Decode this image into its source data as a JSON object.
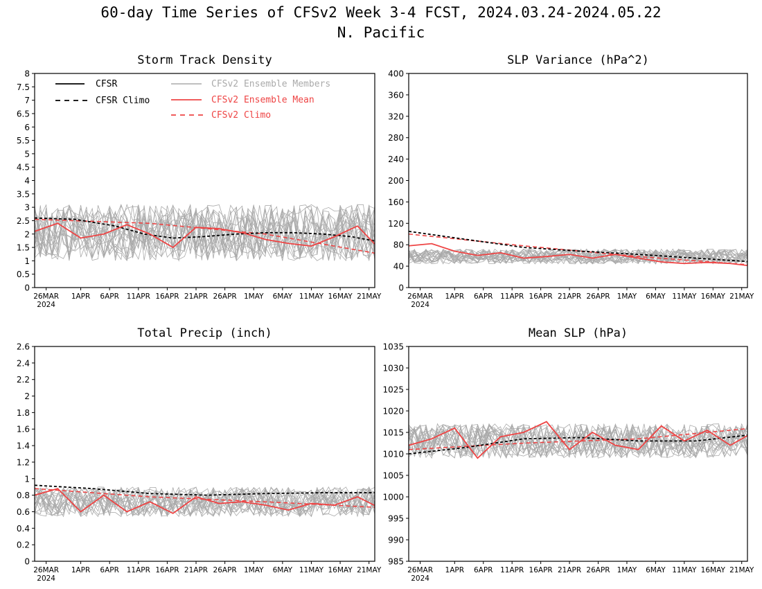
{
  "page": {
    "title_line1": "60-day Time Series of CFSv2 Week 3-4 FCST, 2024.03.24-2024.05.22",
    "title_line2": "N. Pacific"
  },
  "colors": {
    "cfsr": "#000000",
    "ensemble_member": "#aaaaaa",
    "ensemble_mean": "#ee4444",
    "cfsv2_climo": "#ee4444"
  },
  "x_axis": {
    "start_date": "2024-03-24",
    "days": 60,
    "tick_labels": [
      "26MAR",
      "1APR",
      "6APR",
      "11APR",
      "16APR",
      "21APR",
      "26APR",
      "1MAY",
      "6MAY",
      "11MAY",
      "16MAY",
      "21MAY"
    ],
    "tick_dates": [
      "2024-03-26",
      "2024-04-01",
      "2024-04-06",
      "2024-04-11",
      "2024-04-16",
      "2024-04-21",
      "2024-04-26",
      "2024-05-01",
      "2024-05-06",
      "2024-05-11",
      "2024-05-16",
      "2024-05-21"
    ],
    "year_label": "2024"
  },
  "legend": {
    "cfsr": "CFSR",
    "cfsr_climo": "CFSR Climo",
    "members": "CFSv2 Ensemble Members",
    "mean": "CFSv2 Ensemble Mean",
    "cfsv2_climo": "CFSv2 Climo"
  },
  "chart_data": [
    {
      "type": "line",
      "title": "Storm Track Density",
      "ylim": [
        0,
        8
      ],
      "yticks": [
        "0",
        "0.5",
        "1",
        "1.5",
        "2",
        "2.5",
        "3",
        "3.5",
        "4",
        "4.5",
        "5",
        "5.5",
        "6",
        "6.5",
        "7",
        "7.5",
        "8"
      ],
      "cfsr_climo": {
        "x": [
          "2024-03-24",
          "2024-03-31",
          "2024-04-07",
          "2024-04-12",
          "2024-04-17",
          "2024-04-22",
          "2024-04-28",
          "2024-05-03",
          "2024-05-08",
          "2024-05-13",
          "2024-05-18",
          "2024-05-23"
        ],
        "y": [
          2.6,
          2.55,
          2.3,
          2.0,
          1.85,
          1.9,
          2.0,
          2.05,
          2.05,
          2.0,
          1.9,
          1.7
        ]
      },
      "cfsv2_climo": {
        "x": [
          "2024-03-24",
          "2024-04-13",
          "2024-05-03",
          "2024-05-23"
        ],
        "y": [
          2.55,
          2.4,
          2.0,
          1.25
        ]
      },
      "ensemble_mean": {
        "x": [
          "2024-03-24",
          "2024-03-28",
          "2024-04-01",
          "2024-04-05",
          "2024-04-09",
          "2024-04-13",
          "2024-04-17",
          "2024-04-21",
          "2024-04-25",
          "2024-04-29",
          "2024-05-03",
          "2024-05-07",
          "2024-05-11",
          "2024-05-15",
          "2024-05-19",
          "2024-05-23"
        ],
        "y": [
          2.1,
          2.4,
          1.85,
          2.0,
          2.35,
          2.0,
          1.5,
          2.25,
          2.2,
          2.05,
          1.8,
          1.65,
          1.55,
          1.9,
          2.3,
          1.4
        ]
      },
      "members_band": {
        "center": 2.05,
        "amplitude": 1.05,
        "count": 20
      }
    },
    {
      "type": "line",
      "title": "SLP Variance (hPa^2)",
      "ylim": [
        0,
        400
      ],
      "yticks": [
        "0",
        "40",
        "80",
        "120",
        "160",
        "200",
        "240",
        "280",
        "320",
        "360",
        "400"
      ],
      "cfsr_climo": {
        "x": [
          "2024-03-24",
          "2024-04-03",
          "2024-04-13",
          "2024-04-23",
          "2024-05-03",
          "2024-05-13",
          "2024-05-23"
        ],
        "y": [
          105,
          90,
          75,
          68,
          62,
          55,
          48
        ]
      },
      "cfsv2_climo": {
        "x": [
          "2024-03-24",
          "2024-04-13",
          "2024-05-03",
          "2024-05-23"
        ],
        "y": [
          100,
          78,
          58,
          42
        ]
      },
      "ensemble_mean": {
        "x": [
          "2024-03-24",
          "2024-03-28",
          "2024-04-01",
          "2024-04-05",
          "2024-04-09",
          "2024-04-13",
          "2024-04-17",
          "2024-04-21",
          "2024-04-25",
          "2024-04-29",
          "2024-05-03",
          "2024-05-07",
          "2024-05-11",
          "2024-05-15",
          "2024-05-19",
          "2024-05-23"
        ],
        "y": [
          78,
          82,
          68,
          60,
          65,
          55,
          58,
          62,
          55,
          62,
          55,
          48,
          45,
          47,
          45,
          40
        ]
      },
      "members_band": {
        "center": 58,
        "amplitude": 14,
        "count": 20
      }
    },
    {
      "type": "line",
      "title": "Total Precip (inch)",
      "ylim": [
        0,
        2.6
      ],
      "yticks": [
        "0",
        "0.2",
        "0.4",
        "0.6",
        "0.8",
        "1",
        "1.2",
        "1.4",
        "1.6",
        "1.8",
        "2",
        "2.2",
        "2.4",
        "2.6"
      ],
      "cfsr_climo": {
        "x": [
          "2024-03-24",
          "2024-04-03",
          "2024-04-13",
          "2024-04-23",
          "2024-05-03",
          "2024-05-13",
          "2024-05-23"
        ],
        "y": [
          0.92,
          0.88,
          0.82,
          0.8,
          0.82,
          0.83,
          0.83
        ]
      },
      "cfsv2_climo": {
        "x": [
          "2024-03-24",
          "2024-04-13",
          "2024-05-03",
          "2024-05-23"
        ],
        "y": [
          0.88,
          0.78,
          0.72,
          0.65
        ]
      },
      "ensemble_mean": {
        "x": [
          "2024-03-24",
          "2024-03-28",
          "2024-04-01",
          "2024-04-05",
          "2024-04-09",
          "2024-04-13",
          "2024-04-17",
          "2024-04-21",
          "2024-04-25",
          "2024-04-29",
          "2024-05-03",
          "2024-05-07",
          "2024-05-11",
          "2024-05-15",
          "2024-05-19",
          "2024-05-23"
        ],
        "y": [
          0.8,
          0.88,
          0.6,
          0.8,
          0.6,
          0.72,
          0.58,
          0.78,
          0.7,
          0.72,
          0.68,
          0.62,
          0.7,
          0.68,
          0.78,
          0.64
        ]
      },
      "members_band": {
        "center": 0.72,
        "amplitude": 0.18,
        "count": 20
      }
    },
    {
      "type": "line",
      "title": "Mean SLP (hPa)",
      "ylim": [
        985,
        1035
      ],
      "yticks": [
        "985",
        "990",
        "995",
        "1000",
        "1005",
        "1010",
        "1015",
        "1020",
        "1025",
        "1030",
        "1035"
      ],
      "cfsr_climo": {
        "x": [
          "2024-03-24",
          "2024-04-03",
          "2024-04-13",
          "2024-04-23",
          "2024-05-03",
          "2024-05-13",
          "2024-05-23"
        ],
        "y": [
          1010,
          1011.5,
          1013.5,
          1013.8,
          1013,
          1013,
          1014.5
        ]
      },
      "cfsv2_climo": {
        "x": [
          "2024-03-24",
          "2024-04-13",
          "2024-05-03",
          "2024-05-23"
        ],
        "y": [
          1011,
          1012.5,
          1013.5,
          1016
        ]
      },
      "ensemble_mean": {
        "x": [
          "2024-03-24",
          "2024-03-28",
          "2024-04-01",
          "2024-04-05",
          "2024-04-09",
          "2024-04-13",
          "2024-04-17",
          "2024-04-21",
          "2024-04-25",
          "2024-04-29",
          "2024-05-03",
          "2024-05-07",
          "2024-05-11",
          "2024-05-15",
          "2024-05-19",
          "2024-05-23"
        ],
        "y": [
          1012,
          1013.5,
          1016,
          1009,
          1014,
          1015,
          1017.5,
          1011,
          1015,
          1012,
          1011,
          1016.5,
          1013,
          1015.5,
          1012,
          1015
        ]
      },
      "members_band": {
        "center": 1013,
        "amplitude": 4,
        "count": 20
      }
    }
  ]
}
